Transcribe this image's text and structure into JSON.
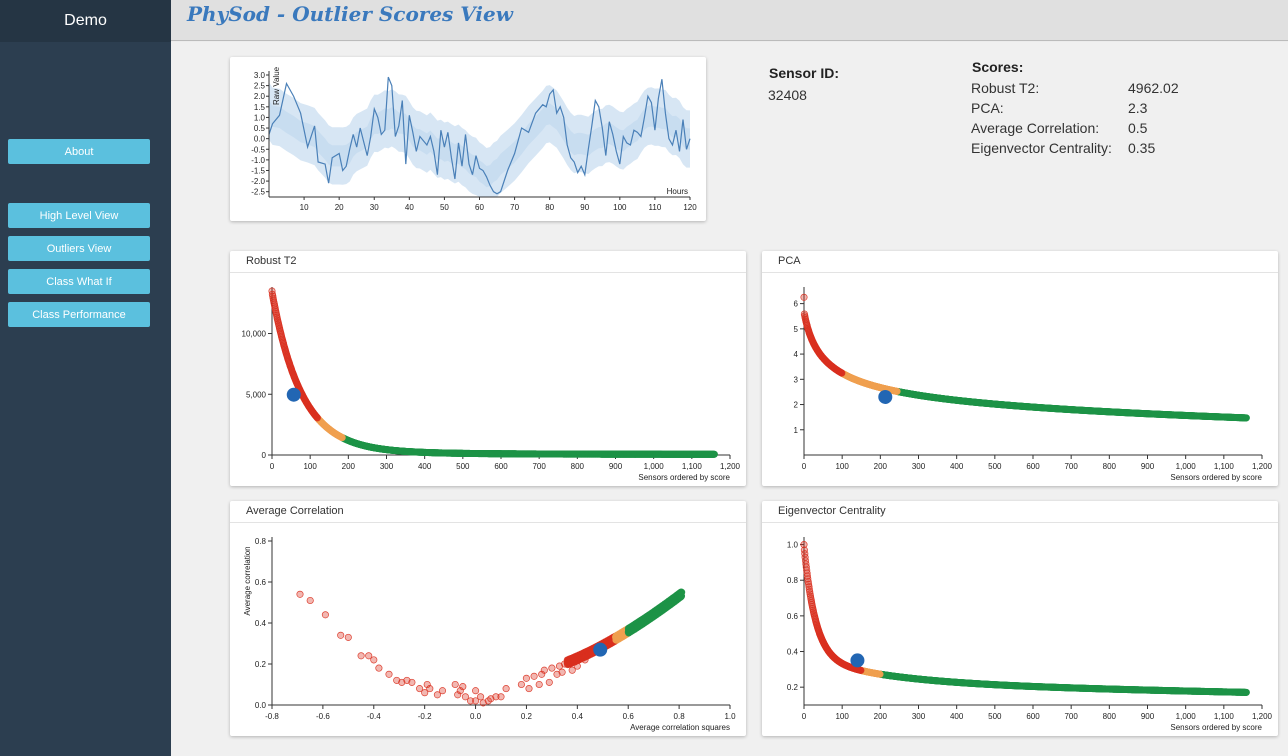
{
  "sidebar": {
    "brand": "Demo",
    "items": [
      {
        "label": "About"
      },
      {
        "label": "High Level View"
      },
      {
        "label": "Outliers View"
      },
      {
        "label": "Class What If"
      },
      {
        "label": "Class Performance"
      }
    ]
  },
  "header": {
    "title": "PhySod - Outlier Scores View"
  },
  "sensor": {
    "label": "Sensor ID:",
    "value": "32408"
  },
  "scores": {
    "title": "Scores:",
    "items": [
      {
        "name": "Robust T2:",
        "value": "4962.02"
      },
      {
        "name": "PCA:",
        "value": "2.3"
      },
      {
        "name": "Average Correlation:",
        "value": "0.5"
      },
      {
        "name": "Eigenvector Centrality:",
        "value": "0.35"
      }
    ]
  },
  "colors": {
    "high": "#d9301f",
    "mid": "#f0a050",
    "low": "#1e9447",
    "selected": "#2266b3",
    "band": "#c6dbef",
    "line": "#4a80b8"
  },
  "panels": {
    "robust": {
      "title": "Robust T2"
    },
    "pca": {
      "title": "PCA"
    },
    "avgcorr": {
      "title": "Average Correlation"
    },
    "eigen": {
      "title": "Eigenvector Centrality"
    }
  },
  "chart_data": [
    {
      "id": "timeseries",
      "type": "line",
      "title": "",
      "ylabel": "Raw Value",
      "xlabel": "Hours",
      "xlim": [
        0,
        120
      ],
      "ylim": [
        -2.75,
        3.0
      ],
      "xticks": [
        10,
        20,
        30,
        40,
        50,
        60,
        70,
        80,
        90,
        100,
        110,
        120
      ],
      "yticks": [
        3.0,
        2.5,
        2.0,
        1.5,
        1.0,
        0.5,
        0.0,
        -0.5,
        -1.0,
        -1.5,
        -2.0,
        -2.5
      ],
      "series": [
        {
          "x": [
            0,
            1,
            3,
            5,
            7,
            9,
            11,
            13,
            14,
            16,
            17,
            18,
            20,
            21,
            22,
            23,
            24,
            25,
            26,
            28,
            29,
            30,
            31,
            32,
            33,
            34,
            35,
            36,
            37,
            38,
            39,
            40,
            41,
            42,
            43,
            45,
            46,
            47,
            48,
            49,
            50,
            51,
            52,
            53,
            54,
            55,
            56,
            57,
            58,
            59,
            60,
            61,
            62,
            63,
            64,
            65,
            66,
            68,
            70,
            72,
            74,
            76,
            78,
            79,
            80,
            81,
            82,
            83,
            84,
            85,
            86,
            87,
            88,
            89,
            90,
            91,
            92,
            93,
            94,
            95,
            96,
            97,
            98,
            99,
            100,
            101,
            102,
            103,
            104,
            105,
            106,
            107,
            108,
            109,
            110,
            111,
            112,
            113,
            114,
            115,
            116,
            117,
            118,
            119,
            120
          ],
          "y": [
            0.2,
            0.7,
            1.1,
            2.6,
            2.0,
            1.2,
            -0.4,
            0.6,
            -1.1,
            -1.2,
            -2.1,
            -0.9,
            -0.7,
            -1.5,
            -1.3,
            -0.5,
            0.2,
            -0.4,
            0.5,
            -0.8,
            0.1,
            1.4,
            1.0,
            0.2,
            0.4,
            2.9,
            2.5,
            0.1,
            0.6,
            1.8,
            -1.2,
            1.1,
            0.3,
            -0.6,
            0.1,
            -0.3,
            0.1,
            -0.6,
            -1.7,
            0.4,
            -0.4,
            0.3,
            -0.9,
            -1.9,
            -0.2,
            -1.3,
            0.2,
            -1.2,
            -1.7,
            -0.8,
            -1.4,
            -1.5,
            -1.8,
            -2.2,
            -2.5,
            -2.6,
            -2.5,
            -1.5,
            -0.7,
            0.5,
            0.3,
            1.2,
            1.6,
            1.5,
            2.1,
            2.3,
            1.2,
            1.5,
            1.0,
            -0.3,
            -0.9,
            -1.1,
            -1.6,
            -1.3,
            -1.7,
            -0.5,
            0.6,
            1.8,
            1.5,
            0.5,
            -0.8,
            0.8,
            0.2,
            -0.6,
            -1.2,
            0.1,
            -0.2,
            -0.3,
            0.4,
            0.3,
            0.1,
            1.0,
            2.0,
            1.7,
            0.4,
            1.9,
            2.8,
            1.2,
            0.0,
            -0.3,
            0.4,
            -0.6,
            0.9,
            -0.5,
            0.0
          ]
        }
      ]
    },
    {
      "id": "robust",
      "type": "scatter",
      "title": "Robust T2",
      "xlabel": "Sensors ordered by score",
      "ylabel": "",
      "xlim": [
        0,
        1200
      ],
      "ylim": [
        0,
        13500
      ],
      "xticks": [
        0,
        100,
        200,
        300,
        400,
        500,
        600,
        700,
        800,
        900,
        1000,
        1100,
        1200
      ],
      "xtick_labels": [
        "0",
        "100",
        "200",
        "300",
        "400",
        "500",
        "600",
        "700",
        "800",
        "900",
        "1,000",
        "1,100",
        "1,200"
      ],
      "yticks": [
        0,
        5000,
        10000
      ],
      "ytick_labels": [
        "0",
        "5,000",
        "10,000"
      ],
      "n_points": 1160,
      "curve": {
        "a": 13500,
        "b": 13000,
        "c": 0.013,
        "d": 9,
        "floor": 50,
        "tail": 350
      },
      "thresholds": {
        "mid_start": 120,
        "low_start": 185
      },
      "selected": {
        "x": 57,
        "y": 4962.02
      }
    },
    {
      "id": "pca",
      "type": "scatter",
      "title": "PCA",
      "xlabel": "Sensors ordered by score",
      "ylabel": "",
      "xlim": [
        0,
        1200
      ],
      "ylim": [
        0,
        6.5
      ],
      "xticks": [
        0,
        100,
        200,
        300,
        400,
        500,
        600,
        700,
        800,
        900,
        1000,
        1100,
        1200
      ],
      "xtick_labels": [
        "0",
        "100",
        "200",
        "300",
        "400",
        "500",
        "600",
        "700",
        "800",
        "900",
        "1,000",
        "1,100",
        "1,200"
      ],
      "yticks": [
        1,
        2,
        3,
        4,
        5,
        6
      ],
      "ytick_labels": [
        "1",
        "2",
        "3",
        "4",
        "5",
        "6"
      ],
      "n_points": 1160,
      "curve": {
        "a": 6.3,
        "k": 0.6
      },
      "thresholds": {
        "mid_start": 100,
        "low_start": 245
      },
      "selected": {
        "x": 213,
        "y": 2.3
      }
    },
    {
      "id": "avgcorr",
      "type": "scatter",
      "title": "Average Correlation",
      "xlabel": "Average correlation squares",
      "ylabel": "Average correlation",
      "xlim": [
        -0.8,
        1.0
      ],
      "ylim": [
        0,
        0.8
      ],
      "xticks": [
        -0.8,
        -0.6,
        -0.4,
        -0.2,
        0.0,
        0.2,
        0.4,
        0.6,
        0.8,
        1.0
      ],
      "xtick_labels": [
        "-0.8",
        "-0.6",
        "-0.4",
        "-0.2",
        "0.0",
        "0.2",
        "0.4",
        "0.6",
        "0.8",
        "1.0"
      ],
      "yticks": [
        0.0,
        0.2,
        0.4,
        0.6,
        0.8
      ],
      "ytick_labels": [
        "0.0",
        "0.2",
        "0.4",
        "0.6",
        "0.8"
      ],
      "scattered": [
        [
          -0.69,
          0.54
        ],
        [
          -0.65,
          0.51
        ],
        [
          -0.59,
          0.44
        ],
        [
          -0.53,
          0.34
        ],
        [
          -0.5,
          0.33
        ],
        [
          -0.45,
          0.24
        ],
        [
          -0.42,
          0.24
        ],
        [
          -0.4,
          0.22
        ],
        [
          -0.38,
          0.18
        ],
        [
          -0.34,
          0.15
        ],
        [
          -0.31,
          0.12
        ],
        [
          -0.29,
          0.11
        ],
        [
          -0.27,
          0.12
        ],
        [
          -0.25,
          0.11
        ],
        [
          -0.22,
          0.08
        ],
        [
          -0.2,
          0.06
        ],
        [
          -0.19,
          0.1
        ],
        [
          -0.18,
          0.08
        ],
        [
          -0.15,
          0.05
        ],
        [
          -0.13,
          0.07
        ],
        [
          -0.08,
          0.1
        ],
        [
          -0.07,
          0.05
        ],
        [
          -0.06,
          0.07
        ],
        [
          -0.05,
          0.09
        ],
        [
          -0.04,
          0.04
        ],
        [
          -0.02,
          0.02
        ],
        [
          0.0,
          0.07
        ],
        [
          0.0,
          0.02
        ],
        [
          0.02,
          0.04
        ],
        [
          0.03,
          0.01
        ],
        [
          0.05,
          0.02
        ],
        [
          0.06,
          0.03
        ],
        [
          0.08,
          0.04
        ],
        [
          0.1,
          0.04
        ],
        [
          0.12,
          0.08
        ],
        [
          0.18,
          0.1
        ],
        [
          0.2,
          0.13
        ],
        [
          0.21,
          0.08
        ],
        [
          0.23,
          0.14
        ],
        [
          0.25,
          0.1
        ],
        [
          0.26,
          0.15
        ],
        [
          0.27,
          0.17
        ],
        [
          0.29,
          0.11
        ],
        [
          0.3,
          0.18
        ],
        [
          0.32,
          0.15
        ],
        [
          0.33,
          0.19
        ],
        [
          0.34,
          0.16
        ],
        [
          0.35,
          0.2
        ],
        [
          0.37,
          0.2
        ],
        [
          0.38,
          0.17
        ],
        [
          0.39,
          0.21
        ],
        [
          0.4,
          0.19
        ],
        [
          0.42,
          0.24
        ],
        [
          0.43,
          0.22
        ]
      ],
      "curve_range": [
        0.36,
        0.81
      ],
      "thresholds": {
        "mid_start": 0.55,
        "low_start": 0.6
      },
      "selected": {
        "x": 0.49,
        "y": 0.27
      }
    },
    {
      "id": "eigen",
      "type": "scatter",
      "title": "Eigenvector Centrality",
      "xlabel": "Sensors ordered by score",
      "ylabel": "",
      "xlim": [
        0,
        1200
      ],
      "ylim": [
        0.1,
        1.02
      ],
      "xticks": [
        0,
        100,
        200,
        300,
        400,
        500,
        600,
        700,
        800,
        900,
        1000,
        1100,
        1200
      ],
      "xtick_labels": [
        "0",
        "100",
        "200",
        "300",
        "400",
        "500",
        "600",
        "700",
        "800",
        "900",
        "1,000",
        "1,100",
        "1,200"
      ],
      "yticks": [
        0.2,
        0.4,
        0.6,
        0.8,
        1.0
      ],
      "ytick_labels": [
        "0.2",
        "0.4",
        "0.6",
        "0.8",
        "1.0"
      ],
      "n_points": 1160,
      "curve": {
        "a": 0.52,
        "k": 0.28
      },
      "thresholds": {
        "mid_start": 150,
        "low_start": 200
      },
      "selected": {
        "x": 140,
        "y": 0.35
      }
    }
  ]
}
